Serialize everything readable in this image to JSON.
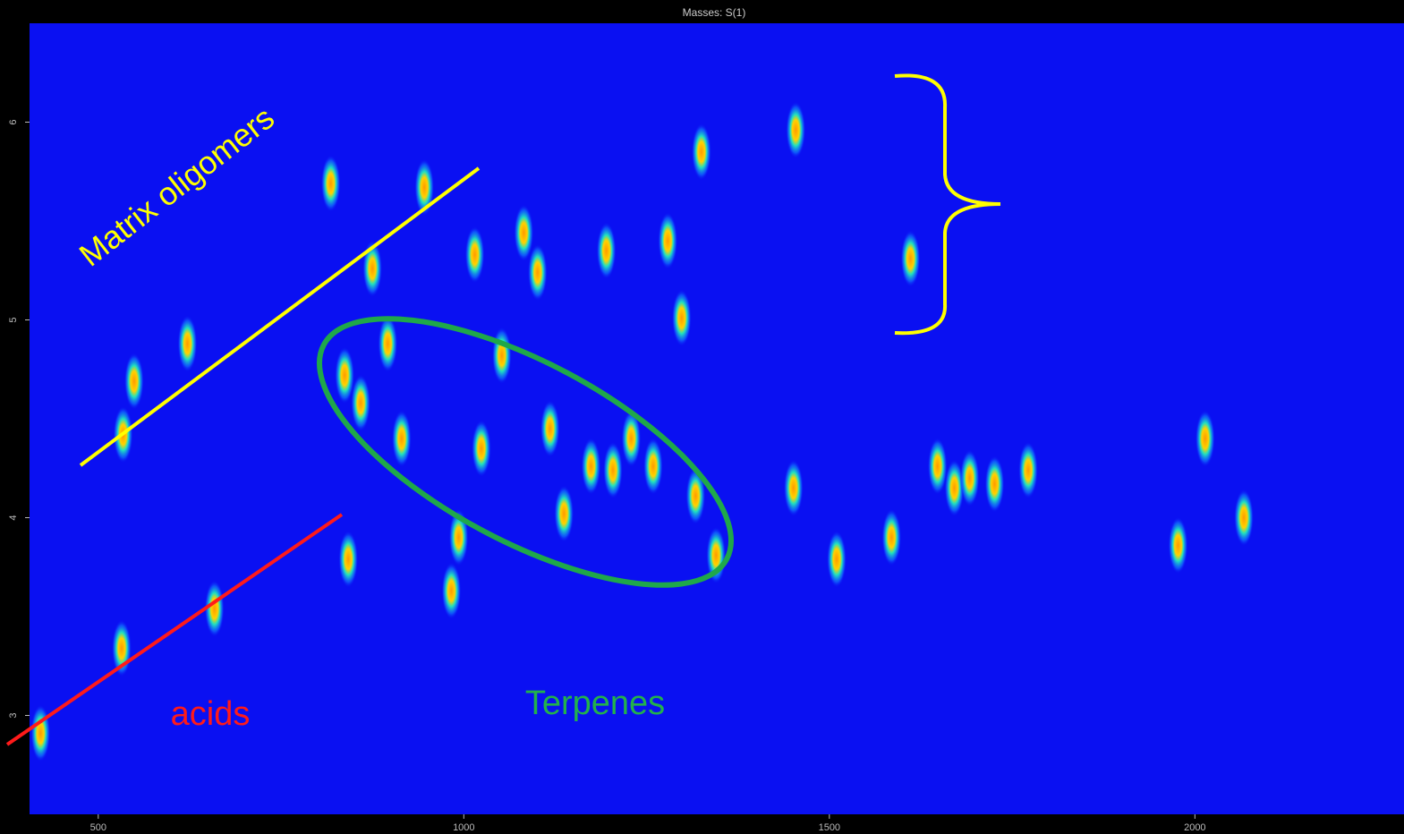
{
  "chart_data": {
    "type": "scatter",
    "title": "Masses: S(1)",
    "xlim": [
      406,
      2286
    ],
    "ylim": [
      2.5,
      6.5
    ],
    "xticks": [
      500,
      1000,
      1500,
      2000
    ],
    "yticks": [
      3,
      4,
      5,
      6
    ],
    "color": "#ffa500",
    "x": [
      818,
      946,
      534,
      549,
      622,
      659,
      532,
      421,
      842,
      875,
      896,
      837,
      859,
      915,
      983,
      993,
      1024,
      1015,
      1082,
      1101,
      1118,
      1137,
      1174,
      1204,
      1229,
      1259,
      1279,
      1298,
      1317,
      1345,
      1451,
      1454,
      1510,
      1585,
      1611,
      1648,
      1671,
      1692,
      1726,
      1772,
      1977,
      1325,
      1052,
      1195,
      2014,
      2067
    ],
    "y": [
      5.69,
      5.67,
      4.42,
      4.69,
      4.88,
      3.54,
      3.34,
      2.91,
      3.79,
      5.26,
      4.88,
      4.72,
      4.58,
      4.4,
      3.63,
      3.9,
      4.35,
      5.33,
      5.44,
      5.24,
      4.45,
      4.02,
      4.26,
      4.24,
      4.4,
      4.26,
      5.4,
      5.01,
      4.11,
      3.81,
      4.15,
      5.96,
      3.79,
      3.9,
      5.31,
      4.26,
      4.15,
      4.2,
      4.17,
      4.24,
      3.86,
      5.85,
      4.82,
      5.35,
      4.4,
      4.0
    ],
    "annotations": {
      "matrix": "Matrix oligomers",
      "acids": "acids",
      "terpenes": "Terpenes"
    }
  }
}
